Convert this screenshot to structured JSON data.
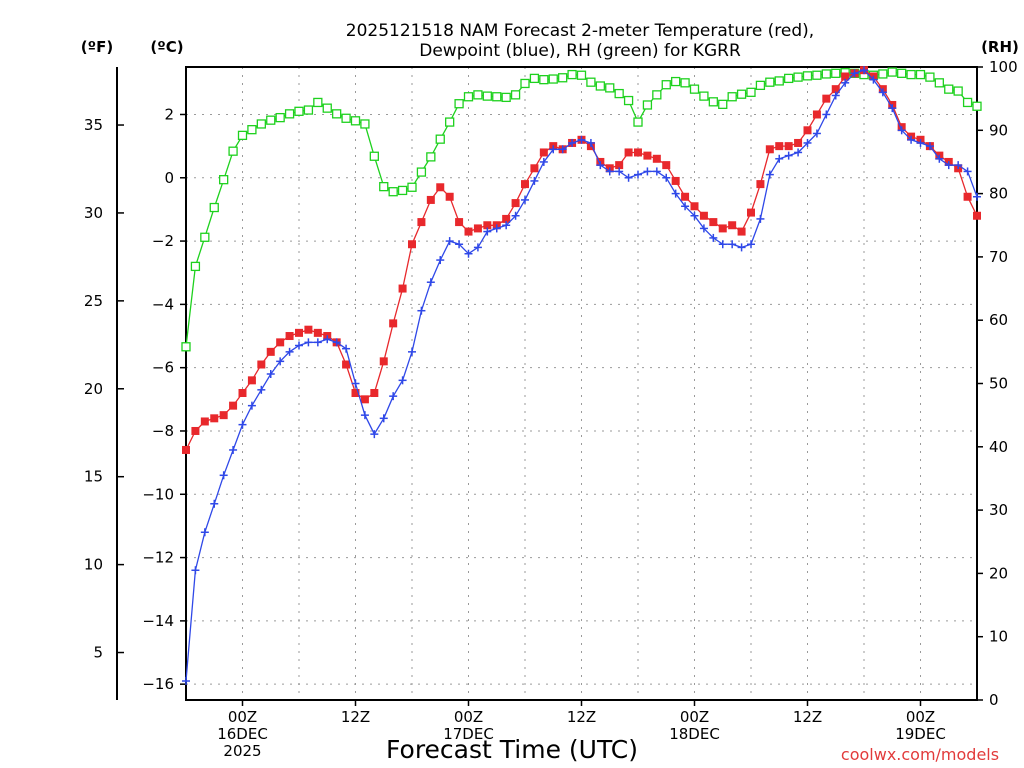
{
  "chart_data": {
    "type": "line",
    "title_line1": "2025121518 NAM Forecast 2-meter Temperature (red),",
    "title_line2": "Dewpoint (blue), RH (green) for KGRR",
    "units": {
      "fahrenheit": "(ºF)",
      "celsius": "(ºC)",
      "rh": "(RH)"
    },
    "xlabel": "Forecast Time (UTC)",
    "credit": "coolwx.com/models",
    "x_range_hours": [
      -6,
      78
    ],
    "y_celsius_range": [
      -16.5,
      3.5
    ],
    "y_rh_range": [
      0,
      100
    ],
    "celsius_ticks": [
      {
        "v": 2,
        "label": "2"
      },
      {
        "v": 0,
        "label": "0"
      },
      {
        "v": -2,
        "label": "−2"
      },
      {
        "v": -4,
        "label": "−4"
      },
      {
        "v": -6,
        "label": "−6"
      },
      {
        "v": -8,
        "label": "−8"
      },
      {
        "v": -10,
        "label": "−10"
      },
      {
        "v": -12,
        "label": "−12"
      },
      {
        "v": -14,
        "label": "−14"
      },
      {
        "v": -16,
        "label": "−16"
      }
    ],
    "fahrenheit_ticks": [
      "35",
      "30",
      "25",
      "20",
      "15",
      "10",
      "5"
    ],
    "rh_ticks": [
      "100",
      "90",
      "80",
      "70",
      "60",
      "50",
      "40",
      "30",
      "20",
      "10",
      "0"
    ],
    "x_ticks": [
      {
        "hour": 0,
        "lines": [
          "00Z",
          "16DEC",
          "2025"
        ]
      },
      {
        "hour": 12,
        "lines": [
          "12Z"
        ]
      },
      {
        "hour": 24,
        "lines": [
          "00Z",
          "17DEC"
        ]
      },
      {
        "hour": 36,
        "lines": [
          "12Z"
        ]
      },
      {
        "hour": 48,
        "lines": [
          "00Z",
          "18DEC"
        ]
      },
      {
        "hour": 60,
        "lines": [
          "12Z"
        ]
      },
      {
        "hour": 72,
        "lines": [
          "00Z",
          "19DEC"
        ]
      }
    ],
    "series": [
      {
        "name": "Temperature",
        "unit": "C",
        "color": "#e8282c",
        "marker": "filled-square",
        "x": [
          -6,
          -5,
          -4,
          -3,
          -2,
          -1,
          0,
          1,
          2,
          3,
          4,
          5,
          6,
          7,
          8,
          9,
          10,
          11,
          12,
          13,
          14,
          15,
          16,
          17,
          18,
          19,
          20,
          21,
          22,
          23,
          24,
          25,
          26,
          27,
          28,
          29,
          30,
          31,
          32,
          33,
          34,
          35,
          36,
          37,
          38,
          39,
          40,
          41,
          42,
          43,
          44,
          45,
          46,
          47,
          48,
          49,
          50,
          51,
          52,
          53,
          54,
          55,
          56,
          57,
          58,
          59,
          60,
          61,
          62,
          63,
          64,
          65,
          66,
          67,
          68,
          69,
          70,
          71,
          72,
          73,
          74,
          75,
          76,
          77,
          78
        ],
        "values": [
          -8.6,
          -8.0,
          -7.7,
          -7.6,
          -7.5,
          -7.2,
          -6.8,
          -6.4,
          -5.9,
          -5.5,
          -5.2,
          -5.0,
          -4.9,
          -4.8,
          -4.9,
          -5.0,
          -5.2,
          -5.9,
          -6.8,
          -7.0,
          -6.8,
          -5.8,
          -4.6,
          -3.5,
          -2.1,
          -1.4,
          -0.7,
          -0.3,
          -0.6,
          -1.4,
          -1.7,
          -1.6,
          -1.5,
          -1.5,
          -1.3,
          -0.8,
          -0.2,
          0.3,
          0.8,
          1.0,
          0.9,
          1.1,
          1.2,
          1.0,
          0.5,
          0.3,
          0.4,
          0.8,
          0.8,
          0.7,
          0.6,
          0.4,
          -0.1,
          -0.6,
          -0.9,
          -1.2,
          -1.4,
          -1.6,
          -1.5,
          -1.7,
          -1.1,
          -0.2,
          0.9,
          1.0,
          1.0,
          1.1,
          1.5,
          2.0,
          2.5,
          2.8,
          3.2,
          3.3,
          3.4,
          3.2,
          2.8,
          2.3,
          1.6,
          1.3,
          1.2,
          1.0,
          0.7,
          0.5,
          0.3,
          -0.6,
          -1.2
        ]
      },
      {
        "name": "Dewpoint",
        "unit": "C",
        "color": "#2f48e8",
        "marker": "plus",
        "x": [
          -6,
          -5,
          -4,
          -3,
          -2,
          -1,
          0,
          1,
          2,
          3,
          4,
          5,
          6,
          7,
          8,
          9,
          10,
          11,
          12,
          13,
          14,
          15,
          16,
          17,
          18,
          19,
          20,
          21,
          22,
          23,
          24,
          25,
          26,
          27,
          28,
          29,
          30,
          31,
          32,
          33,
          34,
          35,
          36,
          37,
          38,
          39,
          40,
          41,
          42,
          43,
          44,
          45,
          46,
          47,
          48,
          49,
          50,
          51,
          52,
          53,
          54,
          55,
          56,
          57,
          58,
          59,
          60,
          61,
          62,
          63,
          64,
          65,
          66,
          67,
          68,
          69,
          70,
          71,
          72,
          73,
          74,
          75,
          76,
          77,
          78
        ],
        "values": [
          -15.9,
          -12.4,
          -11.2,
          -10.3,
          -9.4,
          -8.6,
          -7.8,
          -7.2,
          -6.7,
          -6.2,
          -5.8,
          -5.5,
          -5.3,
          -5.2,
          -5.2,
          -5.1,
          -5.2,
          -5.4,
          -6.5,
          -7.5,
          -8.1,
          -7.6,
          -6.9,
          -6.4,
          -5.5,
          -4.2,
          -3.3,
          -2.6,
          -2.0,
          -2.1,
          -2.4,
          -2.2,
          -1.7,
          -1.6,
          -1.5,
          -1.2,
          -0.7,
          -0.1,
          0.5,
          0.9,
          0.9,
          1.1,
          1.2,
          1.1,
          0.4,
          0.2,
          0.2,
          0.0,
          0.1,
          0.2,
          0.2,
          0.0,
          -0.5,
          -0.9,
          -1.2,
          -1.6,
          -1.9,
          -2.1,
          -2.1,
          -2.2,
          -2.1,
          -1.3,
          0.1,
          0.6,
          0.7,
          0.8,
          1.1,
          1.4,
          2.0,
          2.6,
          3.0,
          3.3,
          3.4,
          3.1,
          2.7,
          2.2,
          1.5,
          1.2,
          1.1,
          1.0,
          0.6,
          0.4,
          0.4,
          0.2,
          -0.6
        ]
      },
      {
        "name": "RH",
        "unit": "%",
        "color": "#1ed11e",
        "marker": "open-square",
        "x": [
          -6,
          -5,
          -4,
          -3,
          -2,
          -1,
          0,
          1,
          2,
          3,
          4,
          5,
          6,
          7,
          8,
          9,
          10,
          11,
          12,
          13,
          14,
          15,
          16,
          17,
          18,
          19,
          20,
          21,
          22,
          23,
          24,
          25,
          26,
          27,
          28,
          29,
          30,
          31,
          32,
          33,
          34,
          35,
          36,
          37,
          38,
          39,
          40,
          41,
          42,
          43,
          44,
          45,
          46,
          47,
          48,
          49,
          50,
          51,
          52,
          53,
          54,
          55,
          56,
          57,
          58,
          59,
          60,
          61,
          62,
          63,
          64,
          65,
          66,
          67,
          68,
          69,
          70,
          71,
          72,
          73,
          74,
          75,
          76,
          77,
          78
        ],
        "values": [
          55.8,
          68.5,
          73.1,
          77.8,
          82.2,
          86.7,
          89.2,
          90.1,
          91.0,
          91.6,
          92.0,
          92.6,
          93.0,
          93.2,
          94.4,
          93.5,
          92.6,
          91.9,
          91.5,
          91.0,
          85.9,
          81.1,
          80.3,
          80.5,
          81.0,
          83.4,
          85.8,
          88.6,
          91.3,
          94.2,
          95.3,
          95.6,
          95.4,
          95.3,
          95.2,
          95.6,
          97.4,
          98.2,
          98.0,
          98.1,
          98.3,
          98.8,
          98.7,
          97.6,
          97.0,
          96.7,
          95.8,
          94.7,
          91.3,
          94.0,
          95.6,
          97.2,
          97.7,
          97.5,
          96.5,
          95.4,
          94.5,
          94.1,
          95.3,
          95.7,
          96.0,
          97.1,
          97.6,
          97.8,
          98.2,
          98.4,
          98.6,
          98.7,
          98.9,
          99.0,
          99.1,
          99.0,
          98.8,
          98.7,
          98.9,
          99.2,
          99.0,
          98.8,
          98.8,
          98.4,
          97.5,
          96.5,
          96.2,
          94.4,
          93.8
        ]
      }
    ]
  }
}
